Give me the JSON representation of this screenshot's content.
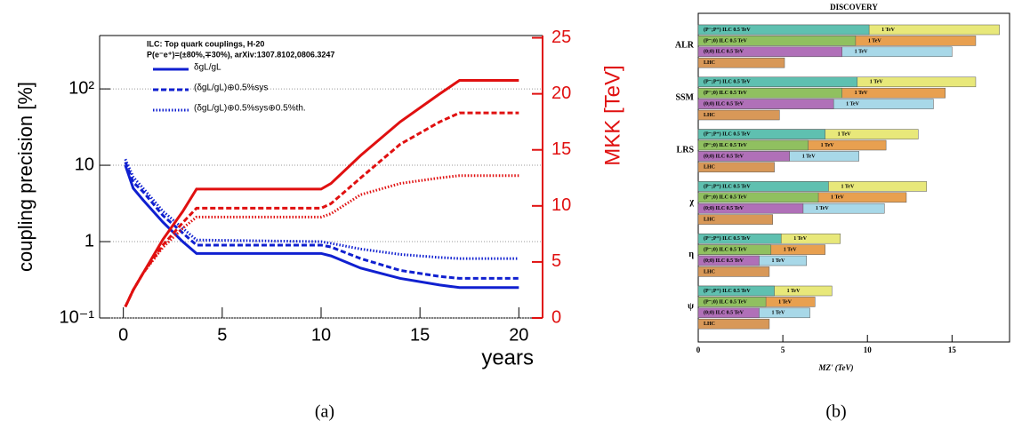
{
  "captions": [
    "(a)",
    "(b)"
  ],
  "chart_data": [
    {
      "type": "line",
      "annotations": [
        "ILC: Top quark couplings, H-20",
        "P(e⁻e⁺)=(±80%,∓30%), arXiv:1307.8102,0806.3247"
      ],
      "x_label": "years",
      "y_label": "coupling precision [%]",
      "y2_label": "MKK [TeV]",
      "xlim": [
        -1.2,
        21.2
      ],
      "xticks": [
        0,
        5,
        10,
        15,
        20
      ],
      "ylim": [
        0.1,
        500
      ],
      "ylog": true,
      "grid": true,
      "yticks": [
        {
          "value": 0.1,
          "label": "10⁻¹"
        },
        1,
        10,
        {
          "value": 100,
          "label": "10²"
        }
      ],
      "y2lim": [
        0,
        25.2
      ],
      "y2ticks": [
        0,
        5,
        10,
        15,
        20,
        25
      ],
      "y2color": "#e01010",
      "x": [
        0.1,
        0.5,
        1,
        2,
        3,
        3.7,
        10,
        10.5,
        12,
        14,
        16,
        17,
        20
      ],
      "series": [
        {
          "name": "δgL/gL",
          "color": "#1020d0",
          "dash": "solid",
          "values": [
            10,
            5,
            3.5,
            1.8,
            1.0,
            0.7,
            0.7,
            0.65,
            0.45,
            0.33,
            0.27,
            0.25,
            0.25
          ]
        },
        {
          "name": "(δgL/gL)⊕0.5%sys",
          "color": "#1020d0",
          "dash": "dashed",
          "values": [
            11,
            6,
            4.5,
            2.2,
            1.3,
            0.9,
            0.9,
            0.85,
            0.6,
            0.42,
            0.35,
            0.33,
            0.33
          ]
        },
        {
          "name": "(δgL/gL)⊕0.5%sys⊕0.5%th.",
          "color": "#1020d0",
          "dash": "dotted",
          "values": [
            12,
            7,
            5,
            2.5,
            1.5,
            1.05,
            1.0,
            0.95,
            0.8,
            0.68,
            0.62,
            0.6,
            0.6
          ]
        },
        {
          "axis": "y2",
          "color": "#e01010",
          "dash": "solid",
          "values": [
            1,
            2.5,
            4,
            7,
            9.5,
            11.5,
            11.5,
            12,
            14.5,
            17.5,
            20,
            21.2,
            21.2
          ]
        },
        {
          "axis": "y2",
          "color": "#e01010",
          "dash": "dashed",
          "values": [
            1,
            2.5,
            4,
            6.5,
            8.5,
            9.8,
            9.8,
            10.2,
            12.5,
            15.5,
            17.5,
            18.3,
            18.3
          ]
        },
        {
          "axis": "y2",
          "color": "#e01010",
          "dash": "dotted",
          "values": [
            1,
            2.5,
            4,
            6.3,
            8,
            9.0,
            9.0,
            9.3,
            11,
            12,
            12.5,
            12.7,
            12.7
          ]
        }
      ]
    },
    {
      "type": "hbar",
      "title": "DISCOVERY",
      "x_label": "MZ' (TeV)",
      "xlim": [
        0,
        18.4
      ],
      "xticks": [
        0,
        5,
        10,
        15
      ],
      "categories": [
        "ALR",
        "SSM",
        "LRS",
        "χ",
        "η",
        "ψ"
      ],
      "series": [
        {
          "name": "(P⁻;P⁺) ILC 0.5 TeV",
          "color": "#5fc0b0",
          "row": 0,
          "values": [
            10.1,
            9.4,
            7.5,
            7.7,
            4.9,
            4.5
          ]
        },
        {
          "name": "1 TeV",
          "color": "#e8e87a",
          "row": 0,
          "values": [
            17.8,
            16.4,
            13.0,
            13.5,
            8.4,
            7.9
          ]
        },
        {
          "name": "(P⁻;0) ILC 0.5 TeV",
          "color": "#90c060",
          "row": 1,
          "values": [
            9.3,
            8.5,
            6.5,
            7.1,
            4.3,
            4.0
          ]
        },
        {
          "name": "1 TeV",
          "color": "#e8a050",
          "row": 1,
          "values": [
            16.4,
            14.6,
            11.1,
            12.3,
            7.5,
            6.9
          ]
        },
        {
          "name": "(0;0) ILC 0.5 TeV",
          "color": "#b070b8",
          "row": 2,
          "values": [
            8.5,
            8.0,
            5.4,
            6.2,
            3.6,
            3.6
          ]
        },
        {
          "name": "1 TeV",
          "color": "#a8d8e8",
          "row": 2,
          "values": [
            15.0,
            13.9,
            9.5,
            11.0,
            6.4,
            6.6
          ]
        },
        {
          "name": "LHC",
          "color": "#d89858",
          "row": 3,
          "values": [
            5.1,
            4.8,
            4.5,
            4.4,
            4.2,
            4.2
          ]
        }
      ]
    }
  ]
}
